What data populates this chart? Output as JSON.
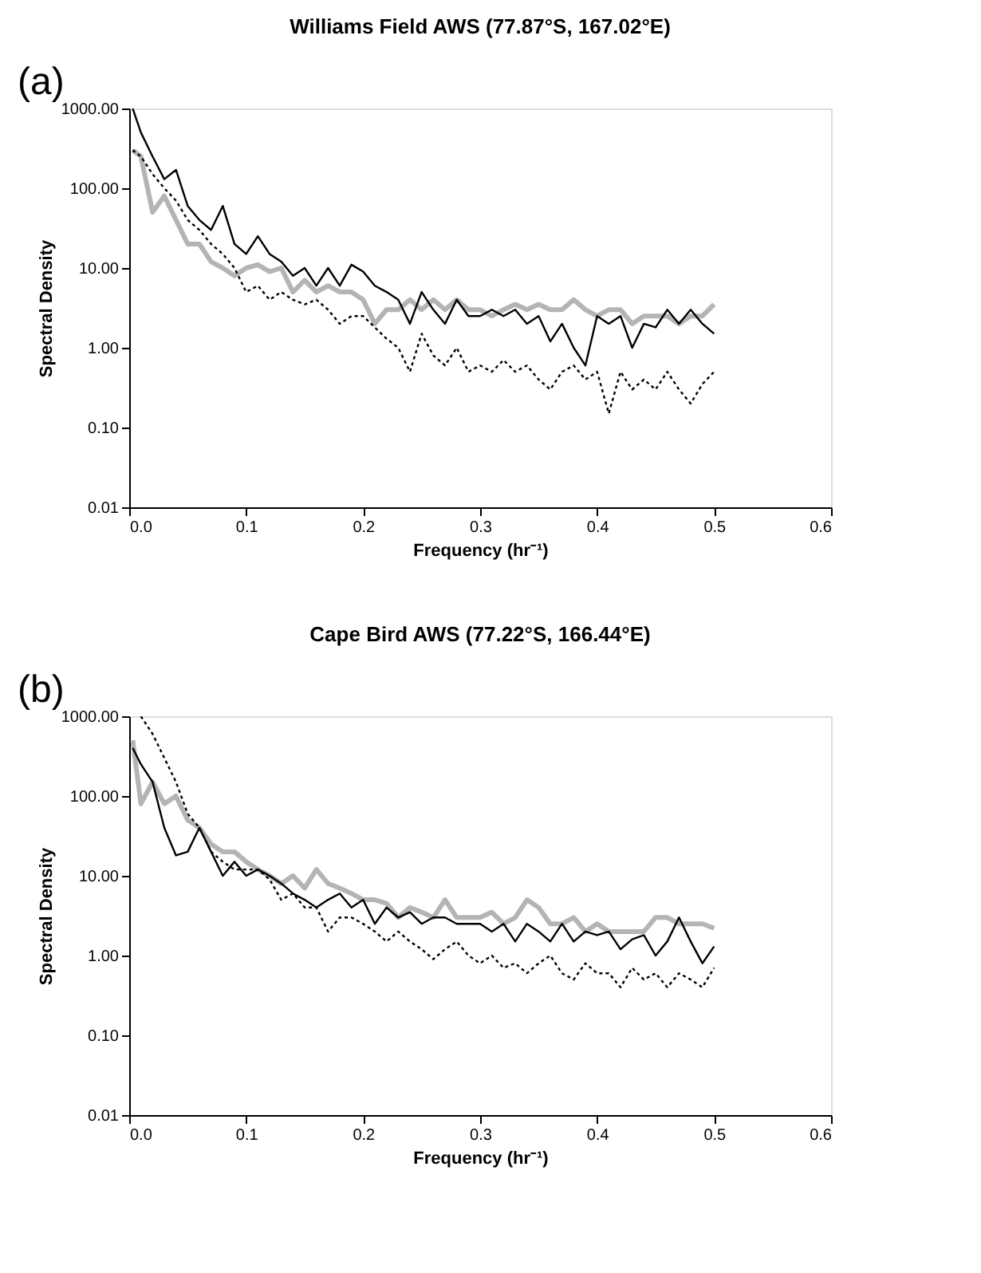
{
  "chart_data": [
    {
      "type": "line",
      "title": "Williams Field AWS (77.87°S, 167.02°E)",
      "xlabel": "Frequency (hr⁻¹)",
      "ylabel": "Spectral Density",
      "annotations": [
        "(a)"
      ],
      "log": "y",
      "grid": false,
      "marker": "none",
      "xlim": [
        0,
        0.6
      ],
      "xticks": [
        {
          "value": 0,
          "label": "0.0"
        },
        0.1,
        0.2,
        0.3,
        0.4,
        0.5,
        0.6
      ],
      "ylim": [
        0.01,
        1000
      ],
      "yticks": [
        {
          "value": 0.01,
          "label": "0.01"
        },
        {
          "value": 0.1,
          "label": "0.10"
        },
        {
          "value": 1,
          "label": "1.00"
        },
        {
          "value": 10,
          "label": "10.00"
        },
        {
          "value": 100,
          "label": "100.00"
        },
        {
          "value": 1000,
          "label": "1000.00"
        }
      ],
      "x": [
        0.003,
        0.01,
        0.02,
        0.03,
        0.04,
        0.05,
        0.06,
        0.07,
        0.08,
        0.09,
        0.1,
        0.11,
        0.12,
        0.13,
        0.14,
        0.15,
        0.16,
        0.17,
        0.18,
        0.19,
        0.2,
        0.21,
        0.22,
        0.23,
        0.24,
        0.25,
        0.26,
        0.27,
        0.28,
        0.29,
        0.3,
        0.31,
        0.32,
        0.33,
        0.34,
        0.35,
        0.36,
        0.37,
        0.38,
        0.39,
        0.4,
        0.41,
        0.42,
        0.43,
        0.44,
        0.45,
        0.46,
        0.47,
        0.48,
        0.49,
        0.5
      ],
      "series": [
        {
          "color": "#b4b4b4",
          "line_style": "solid",
          "values": [
            300,
            250,
            50,
            80,
            40,
            20,
            20,
            12,
            10,
            8,
            10,
            11,
            9,
            10,
            5,
            7,
            5,
            6,
            5,
            5,
            4,
            2,
            3,
            3,
            4,
            3,
            4,
            3,
            4,
            3,
            3,
            2.5,
            3,
            3.5,
            3,
            3.5,
            3,
            3,
            4,
            3,
            2.5,
            3,
            3,
            2,
            2.5,
            2.5,
            2.5,
            2,
            2.5,
            2.5,
            3.5
          ]
        },
        {
          "color": "#000000",
          "line_style": "dotted",
          "values": [
            300,
            250,
            150,
            100,
            70,
            40,
            30,
            20,
            15,
            10,
            5,
            6,
            4,
            5,
            4,
            3.5,
            4,
            3,
            2,
            2.5,
            2.5,
            1.8,
            1.3,
            1,
            0.5,
            1.5,
            0.8,
            0.6,
            1,
            0.5,
            0.6,
            0.5,
            0.7,
            0.5,
            0.6,
            0.4,
            0.3,
            0.5,
            0.6,
            0.4,
            0.5,
            0.15,
            0.5,
            0.3,
            0.4,
            0.3,
            0.5,
            0.3,
            0.2,
            0.35,
            0.5
          ]
        },
        {
          "color": "#000000",
          "line_style": "solid",
          "values": [
            1000,
            500,
            250,
            130,
            170,
            60,
            40,
            30,
            60,
            20,
            15,
            25,
            15,
            12,
            8,
            10,
            6,
            10,
            6,
            11,
            9,
            6,
            5,
            4,
            2,
            5,
            3,
            2,
            4,
            2.5,
            2.5,
            3,
            2.5,
            3,
            2,
            2.5,
            1.2,
            2,
            1,
            0.6,
            2.5,
            2,
            2.5,
            1,
            2,
            1.8,
            3,
            2,
            3,
            2,
            1.5
          ]
        }
      ]
    },
    {
      "type": "line",
      "title": "Cape Bird AWS (77.22°S, 166.44°E)",
      "xlabel": "Frequency (hr⁻¹)",
      "ylabel": "Spectral Density",
      "annotations": [
        "(b)"
      ],
      "log": "y",
      "grid": false,
      "marker": "none",
      "xlim": [
        0,
        0.6
      ],
      "xticks": [
        {
          "value": 0,
          "label": "0.0"
        },
        0.1,
        0.2,
        0.3,
        0.4,
        0.5,
        0.6
      ],
      "ylim": [
        0.01,
        1000
      ],
      "yticks": [
        {
          "value": 0.01,
          "label": "0.01"
        },
        {
          "value": 0.1,
          "label": "0.10"
        },
        {
          "value": 1,
          "label": "1.00"
        },
        {
          "value": 10,
          "label": "10.00"
        },
        {
          "value": 100,
          "label": "100.00"
        },
        {
          "value": 1000,
          "label": "1000.00"
        }
      ],
      "x": [
        0.003,
        0.01,
        0.02,
        0.03,
        0.04,
        0.05,
        0.06,
        0.07,
        0.08,
        0.09,
        0.1,
        0.11,
        0.12,
        0.13,
        0.14,
        0.15,
        0.16,
        0.17,
        0.18,
        0.19,
        0.2,
        0.21,
        0.22,
        0.23,
        0.24,
        0.25,
        0.26,
        0.27,
        0.28,
        0.29,
        0.3,
        0.31,
        0.32,
        0.33,
        0.34,
        0.35,
        0.36,
        0.37,
        0.38,
        0.39,
        0.4,
        0.41,
        0.42,
        0.43,
        0.44,
        0.45,
        0.46,
        0.47,
        0.48,
        0.49,
        0.5
      ],
      "series": [
        {
          "color": "#b4b4b4",
          "line_style": "solid",
          "values": [
            500,
            80,
            150,
            80,
            100,
            50,
            40,
            25,
            20,
            20,
            15,
            12,
            10,
            8,
            10,
            7,
            12,
            8,
            7,
            6,
            5,
            5,
            4.5,
            3,
            4,
            3.5,
            3,
            5,
            3,
            3,
            3,
            3.5,
            2.5,
            3,
            5,
            4,
            2.5,
            2.5,
            3,
            2,
            2.5,
            2,
            2,
            2,
            2,
            3,
            3,
            2.5,
            2.5,
            2.5,
            2.2
          ]
        },
        {
          "color": "#000000",
          "line_style": "dotted",
          "values": [
            null,
            1000,
            600,
            300,
            150,
            60,
            40,
            20,
            15,
            12,
            12,
            12,
            9,
            5,
            6,
            4,
            4,
            2,
            3,
            3,
            2.5,
            2,
            1.5,
            2,
            1.5,
            1.2,
            0.9,
            1.2,
            1.5,
            1,
            0.8,
            1,
            0.7,
            0.8,
            0.6,
            0.8,
            1,
            0.6,
            0.5,
            0.8,
            0.6,
            0.6,
            0.4,
            0.7,
            0.5,
            0.6,
            0.4,
            0.6,
            0.5,
            0.4,
            0.7
          ]
        },
        {
          "color": "#000000",
          "line_style": "solid",
          "values": [
            400,
            250,
            150,
            40,
            18,
            20,
            40,
            20,
            10,
            15,
            10,
            12,
            10,
            8,
            6,
            5,
            4,
            5,
            6,
            4,
            5,
            2.5,
            4,
            3,
            3.5,
            2.5,
            3,
            3,
            2.5,
            2.5,
            2.5,
            2,
            2.5,
            1.5,
            2.5,
            2,
            1.5,
            2.5,
            1.5,
            2,
            1.8,
            2,
            1.2,
            1.6,
            1.8,
            1,
            1.5,
            3,
            1.5,
            0.8,
            1.3
          ]
        }
      ]
    }
  ]
}
